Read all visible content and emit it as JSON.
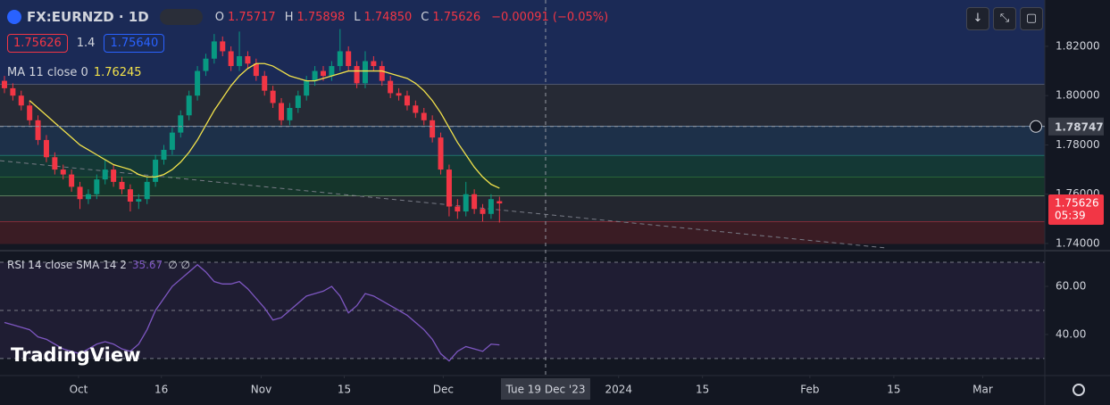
{
  "header": {
    "symbol": "FX:EURNZD · 1D",
    "ohlc": [
      {
        "key": "O",
        "value": "1.75717"
      },
      {
        "key": "H",
        "value": "1.75898"
      },
      {
        "key": "L",
        "value": "1.74850"
      },
      {
        "key": "C",
        "value": "1.75626"
      }
    ],
    "change": "−0.00091 (−0.05%)",
    "bid": "1.75626",
    "spread": "1.4",
    "ask": "1.75640",
    "watermark": "TradingView"
  },
  "chart_data": {
    "type": "candlestick",
    "xlim": [
      -0.53,
      124
    ],
    "xticks": [
      {
        "value": 8.83,
        "label": "Oct"
      },
      {
        "value": 18.7,
        "label": "16"
      },
      {
        "value": 30.6,
        "label": "Nov"
      },
      {
        "value": 40.5,
        "label": "15"
      },
      {
        "value": 52.3,
        "label": "Dec"
      },
      {
        "value": 73.2,
        "label": "2024"
      },
      {
        "value": 83.2,
        "label": "15"
      },
      {
        "value": 96,
        "label": "Feb"
      },
      {
        "value": 106,
        "label": "15"
      },
      {
        "value": 116.6,
        "label": "Mar"
      }
    ],
    "ylim": [
      1.73745,
      1.8388
    ],
    "yticks": [
      {
        "value": 1.74,
        "label": "1.74000"
      },
      {
        "value": 1.76,
        "label": "1.76000"
      },
      {
        "value": 1.78,
        "label": "1.78000"
      },
      {
        "value": 1.8,
        "label": "1.80000"
      },
      {
        "value": 1.82,
        "label": "1.82000"
      }
    ],
    "up_color": "#089981",
    "down_color": "#f23645",
    "candles": {
      "open": [
        1.806,
        1.803,
        1.8,
        1.796,
        1.79,
        1.782,
        1.775,
        1.77,
        1.768,
        1.763,
        1.758,
        1.76,
        1.766,
        1.77,
        1.765,
        1.762,
        1.757,
        1.758,
        1.765,
        1.774,
        1.778,
        1.785,
        1.792,
        1.8,
        1.81,
        1.815,
        1.822,
        1.818,
        1.812,
        1.816,
        1.813,
        1.808,
        1.802,
        1.797,
        1.79,
        1.795,
        1.8,
        1.806,
        1.81,
        1.808,
        1.812,
        1.818,
        1.812,
        1.805,
        1.814,
        1.812,
        1.806,
        1.801,
        1.8,
        1.796,
        1.793,
        1.79,
        1.783,
        1.77,
        1.755,
        1.753,
        1.76,
        1.754,
        1.752,
        1.75717
      ],
      "high": [
        1.808,
        1.805,
        1.802,
        1.798,
        1.792,
        1.784,
        1.777,
        1.772,
        1.77,
        1.765,
        1.762,
        1.768,
        1.774,
        1.772,
        1.767,
        1.764,
        1.76,
        1.767,
        1.776,
        1.78,
        1.787,
        1.794,
        1.802,
        1.812,
        1.817,
        1.825,
        1.824,
        1.82,
        1.826,
        1.818,
        1.815,
        1.81,
        1.804,
        1.799,
        1.797,
        1.802,
        1.808,
        1.812,
        1.812,
        1.814,
        1.827,
        1.82,
        1.814,
        1.818,
        1.816,
        1.814,
        1.808,
        1.803,
        1.802,
        1.798,
        1.795,
        1.792,
        1.785,
        1.772,
        1.758,
        1.765,
        1.762,
        1.756,
        1.76,
        1.75898
      ],
      "low": [
        1.801,
        1.798,
        1.794,
        1.788,
        1.78,
        1.773,
        1.768,
        1.766,
        1.761,
        1.754,
        1.756,
        1.758,
        1.764,
        1.763,
        1.76,
        1.753,
        1.754,
        1.756,
        1.763,
        1.772,
        1.776,
        1.783,
        1.79,
        1.798,
        1.808,
        1.813,
        1.816,
        1.81,
        1.81,
        1.811,
        1.806,
        1.8,
        1.795,
        1.788,
        1.788,
        1.793,
        1.798,
        1.804,
        1.806,
        1.806,
        1.81,
        1.81,
        1.803,
        1.803,
        1.81,
        1.804,
        1.799,
        1.798,
        1.794,
        1.791,
        1.788,
        1.781,
        1.768,
        1.751,
        1.75,
        1.751,
        1.752,
        1.749,
        1.75,
        1.7485
      ],
      "close": [
        1.803,
        1.8,
        1.796,
        1.79,
        1.782,
        1.775,
        1.77,
        1.768,
        1.763,
        1.758,
        1.76,
        1.766,
        1.77,
        1.765,
        1.762,
        1.757,
        1.758,
        1.765,
        1.774,
        1.778,
        1.785,
        1.792,
        1.8,
        1.81,
        1.815,
        1.822,
        1.818,
        1.812,
        1.816,
        1.813,
        1.808,
        1.802,
        1.797,
        1.79,
        1.795,
        1.8,
        1.806,
        1.81,
        1.808,
        1.812,
        1.818,
        1.812,
        1.805,
        1.814,
        1.812,
        1.806,
        1.801,
        1.8,
        1.796,
        1.793,
        1.79,
        1.783,
        1.77,
        1.755,
        1.753,
        1.76,
        1.754,
        1.752,
        1.758,
        1.75626
      ]
    },
    "ma": {
      "name": "MA 11 close 0",
      "color": "#f2e24b",
      "last_label": "1.76245",
      "values": [
        null,
        null,
        null,
        1.798,
        1.795,
        1.792,
        1.789,
        1.786,
        1.783,
        1.78,
        1.778,
        1.776,
        1.774,
        1.772,
        1.771,
        1.77,
        1.768,
        1.767,
        1.767,
        1.768,
        1.77,
        1.773,
        1.777,
        1.782,
        1.788,
        1.794,
        1.799,
        1.804,
        1.808,
        1.811,
        1.813,
        1.813,
        1.812,
        1.81,
        1.808,
        1.807,
        1.806,
        1.806,
        1.807,
        1.808,
        1.809,
        1.81,
        1.81,
        1.81,
        1.81,
        1.81,
        1.809,
        1.808,
        1.807,
        1.805,
        1.802,
        1.798,
        1.793,
        1.787,
        1.781,
        1.776,
        1.771,
        1.767,
        1.764,
        1.76245
      ]
    },
    "zones": [
      {
        "low": 1.80444,
        "high": 1.8388,
        "color": "#1b2a56",
        "line": "#787b86"
      },
      {
        "low": 1.78747,
        "high": 1.80444,
        "color": "#262a35",
        "line": "#9fc4e8"
      },
      {
        "low": 1.77566,
        "high": 1.78747,
        "color": "#1d3049",
        "line": "#2a9d8f"
      },
      {
        "low": 1.76697,
        "high": 1.77566,
        "color": "#143835",
        "line": "#43a047"
      },
      {
        "low": 1.75919,
        "high": 1.76697,
        "color": "#15352b",
        "line": "#b5d99c"
      },
      {
        "low": 1.74869,
        "high": 1.75919,
        "color": "#23262f",
        "line": "#f23645"
      },
      {
        "low": 1.74,
        "high": 1.74869,
        "color": "#3a1c24",
        "line": "#3a1c24"
      }
    ],
    "trendline": {
      "x": [
        -0.53,
        105.1
      ],
      "y": [
        1.7736,
        1.7382
      ],
      "color": "#787b86"
    },
    "crosshair": {
      "x": 64.5,
      "y": 1.78747,
      "label": "Tue 19 Dec '23",
      "y_label": "1.78747"
    },
    "last_price": {
      "value": 1.75626,
      "label": "1.75626",
      "countdown": "05:39"
    },
    "rsi": {
      "name": "RSI 14 close SMA 14 2",
      "last_label": "35.67",
      "extra": "∅ ∅",
      "color": "#7e57c2",
      "ylim": [
        23.3,
        74.1
      ],
      "yticks": [
        {
          "value": 40,
          "label": "40.00"
        },
        {
          "value": 60,
          "label": "60.00"
        }
      ],
      "bands": [
        30,
        50,
        70
      ],
      "values": [
        45,
        44,
        43,
        42,
        39,
        38,
        36,
        34,
        33,
        32,
        34,
        36,
        37,
        36,
        34,
        33,
        36,
        42,
        50,
        55,
        60,
        63,
        66,
        69,
        66,
        62,
        61,
        61,
        62,
        59,
        55,
        51,
        46,
        47,
        50,
        53,
        56,
        57,
        58,
        60,
        56,
        49,
        52,
        57,
        56,
        54,
        52,
        50,
        48,
        45,
        42,
        38,
        32,
        29,
        33,
        35,
        34,
        33,
        36,
        35.67
      ]
    }
  }
}
